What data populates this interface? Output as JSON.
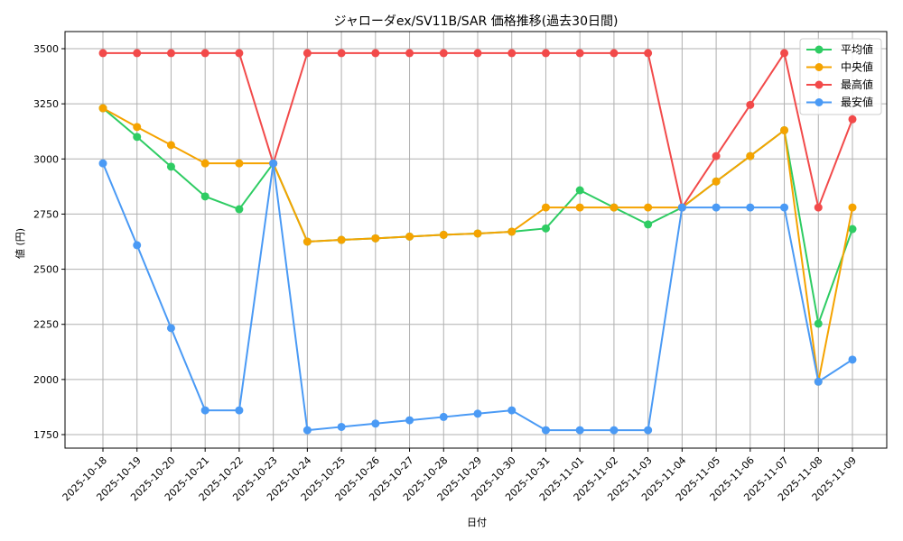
{
  "chart_data": {
    "type": "line",
    "title": "ジャローダex/SV11B/SAR 価格推移(過去30日間)",
    "xlabel": "日付",
    "ylabel": "値 (円)",
    "ylim": [
      1690,
      3560
    ],
    "yticks": [
      1750,
      2000,
      2250,
      2500,
      2750,
      3000,
      3250,
      3500
    ],
    "grid": true,
    "legend_position": "upper right",
    "x": [
      "2025-10-18",
      "2025-10-19",
      "2025-10-20",
      "2025-10-21",
      "2025-10-22",
      "2025-10-23",
      "2025-10-24",
      "2025-10-25",
      "2025-10-26",
      "2025-10-27",
      "2025-10-28",
      "2025-10-29",
      "2025-10-30",
      "2025-10-31",
      "2025-11-01",
      "2025-11-02",
      "2025-11-03",
      "2025-11-04",
      "2025-11-05",
      "2025-11-06",
      "2025-11-07",
      "2025-11-08",
      "2025-11-09"
    ],
    "series": [
      {
        "name": "平均値",
        "color": "#2ecc63",
        "values": [
          3230,
          3100,
          2965,
          2830,
          2772,
          2980,
          2625,
          2633,
          2640,
          2648,
          2656,
          2662,
          2670,
          2685,
          2858,
          2780,
          2703,
          2780,
          2898,
          3013,
          3130,
          2253,
          2682
        ]
      },
      {
        "name": "中央値",
        "color": "#f5a300",
        "values": [
          3230,
          3145,
          3063,
          2980,
          2980,
          2980,
          2625,
          2633,
          2640,
          2648,
          2656,
          2662,
          2670,
          2780,
          2780,
          2780,
          2780,
          2780,
          2898,
          3013,
          3130,
          1990,
          2780
        ]
      },
      {
        "name": "最高値",
        "color": "#f24a4a",
        "values": [
          3480,
          3480,
          3480,
          3480,
          3480,
          2980,
          3480,
          3480,
          3480,
          3480,
          3480,
          3480,
          3480,
          3480,
          3480,
          3480,
          3480,
          2780,
          3013,
          3245,
          3480,
          2780,
          3180
        ]
      },
      {
        "name": "最安値",
        "color": "#4a9af5",
        "values": [
          2980,
          2609,
          2233,
          1860,
          1860,
          2980,
          1770,
          1785,
          1800,
          1815,
          1830,
          1845,
          1860,
          1770,
          1770,
          1770,
          1770,
          2780,
          2780,
          2780,
          2780,
          1990,
          2090
        ]
      }
    ]
  }
}
